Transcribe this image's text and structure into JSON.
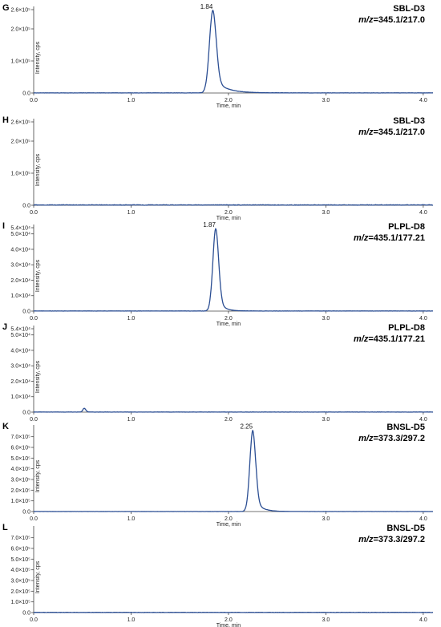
{
  "colors": {
    "trace": "#2b4e93",
    "axis": "#444444",
    "text": "#222222"
  },
  "chart_data": [
    {
      "type": "line",
      "panel": "G",
      "compound": "SBL-D3",
      "mz_prefix": "m/z",
      "mz_value": "=345.1/217.0",
      "xlabel": "Time, min",
      "ylabel": "Intensity, cps",
      "xlim": [
        0,
        4.1
      ],
      "ylim": [
        0,
        260000
      ],
      "xticks": [
        0,
        1,
        2,
        3,
        4
      ],
      "xtick_labels": [
        "0.0",
        "1.0",
        "2.0",
        "3.0",
        "4.0"
      ],
      "yticks": [
        0,
        100000,
        200000,
        260000
      ],
      "ytick_labels": [
        "0.0",
        "1.0×10⁵",
        "2.0×10⁵",
        "2.6×10⁵"
      ],
      "peak": {
        "label": "1.84",
        "rt": 1.84,
        "height": 258000,
        "sigma": 0.035,
        "tail": 0.12
      },
      "noise": 1200
    },
    {
      "type": "line",
      "panel": "H",
      "compound": "SBL-D3",
      "mz_prefix": "m/z",
      "mz_value": "=345.1/217.0",
      "xlabel": "Time, min",
      "ylabel": "Intensity, cps",
      "xlim": [
        0,
        4.1
      ],
      "ylim": [
        0,
        260000
      ],
      "xticks": [
        0,
        1,
        2,
        3,
        4
      ],
      "xtick_labels": [
        "0.0",
        "1.0",
        "2.0",
        "3.0",
        "4.0"
      ],
      "yticks": [
        0,
        100000,
        200000,
        260000
      ],
      "ytick_labels": [
        "0.0",
        "1.0×10⁵",
        "2.0×10⁵",
        "2.6×10⁵"
      ],
      "peak": null,
      "noise": 3500
    },
    {
      "type": "line",
      "panel": "I",
      "compound": "PLPL-D8",
      "mz_prefix": "m/z",
      "mz_value": "=435.1/177.21",
      "xlabel": "Time, min",
      "ylabel": "Intensity, cps",
      "xlim": [
        0,
        4.1
      ],
      "ylim": [
        0,
        54000
      ],
      "xticks": [
        0,
        1,
        2,
        3,
        4
      ],
      "xtick_labels": [
        "0.0",
        "1.0",
        "2.0",
        "3.0",
        "4.0"
      ],
      "yticks": [
        0,
        10000,
        20000,
        30000,
        40000,
        50000,
        54000
      ],
      "ytick_labels": [
        "0.0",
        "1.0×10⁴",
        "2.0×10⁴",
        "3.0×10⁴",
        "4.0×10⁴",
        "5.0×10⁴",
        "5.4×10⁴"
      ],
      "peak": {
        "label": "1.87",
        "rt": 1.87,
        "height": 53500,
        "sigma": 0.03,
        "tail": 0.06
      },
      "noise": 250
    },
    {
      "type": "line",
      "panel": "J",
      "compound": "PLPL-D8",
      "mz_prefix": "m/z",
      "mz_value": "=435.1/177.21",
      "xlabel": "",
      "ylabel": "Intensity, cps",
      "xlim": [
        0,
        4.1
      ],
      "ylim": [
        0,
        54000
      ],
      "xticks": [
        0,
        1,
        2,
        3,
        4
      ],
      "xtick_labels": [
        "0.0",
        "1.0",
        "2.0",
        "3.0",
        "4.0"
      ],
      "yticks": [
        0,
        10000,
        20000,
        30000,
        40000,
        50000,
        54000
      ],
      "ytick_labels": [
        "0.0",
        "1.0×10⁴",
        "2.0×10⁴",
        "3.0×10⁴",
        "4.0×10⁴",
        "5.0×10⁴",
        "5.4×10⁴"
      ],
      "peak": {
        "label": "",
        "rt": 0.52,
        "height": 2500,
        "sigma": 0.015,
        "tail": 0.02
      },
      "noise": 200
    },
    {
      "type": "line",
      "panel": "K",
      "compound": "BNSL-D5",
      "mz_prefix": "m/z",
      "mz_value": "=373.3/297.2",
      "xlabel": "Time, min",
      "ylabel": "Intensity, cps",
      "xlim": [
        0,
        4.1
      ],
      "ylim": [
        0,
        780000
      ],
      "xticks": [
        0,
        1,
        2,
        3,
        4
      ],
      "xtick_labels": [
        "0.0",
        "1.0",
        "2.0",
        "3.0",
        "4.0"
      ],
      "yticks": [
        0,
        100000,
        200000,
        300000,
        400000,
        500000,
        600000,
        700000
      ],
      "ytick_labels": [
        "0.0",
        "1.0×10⁵",
        "2.0×10⁵",
        "3.0×10⁵",
        "4.0×10⁵",
        "5.0×10⁵",
        "6.0×10⁵",
        "7.0×10⁵"
      ],
      "peak": {
        "label": "2.25",
        "rt": 2.25,
        "height": 760000,
        "sigma": 0.03,
        "tail": 0.07
      },
      "noise": 1500
    },
    {
      "type": "line",
      "panel": "L",
      "compound": "BNSL-D5",
      "mz_prefix": "m/z",
      "mz_value": "=373.3/297.2",
      "xlabel": "Time, min",
      "ylabel": "Intensity, cps",
      "xlim": [
        0,
        4.1
      ],
      "ylim": [
        0,
        780000
      ],
      "xticks": [
        0,
        1,
        2,
        3,
        4
      ],
      "xtick_labels": [
        "0.0",
        "1.0",
        "2.0",
        "3.0",
        "4.0"
      ],
      "yticks": [
        0,
        100000,
        200000,
        300000,
        400000,
        500000,
        600000,
        700000
      ],
      "ytick_labels": [
        "0.0",
        "1.0×10⁵",
        "2.0×10⁵",
        "3.0×10⁵",
        "4.0×10⁵",
        "5.0×10⁵",
        "6.0×10⁵",
        "7.0×10⁵"
      ],
      "peak": null,
      "noise": 6000
    }
  ]
}
